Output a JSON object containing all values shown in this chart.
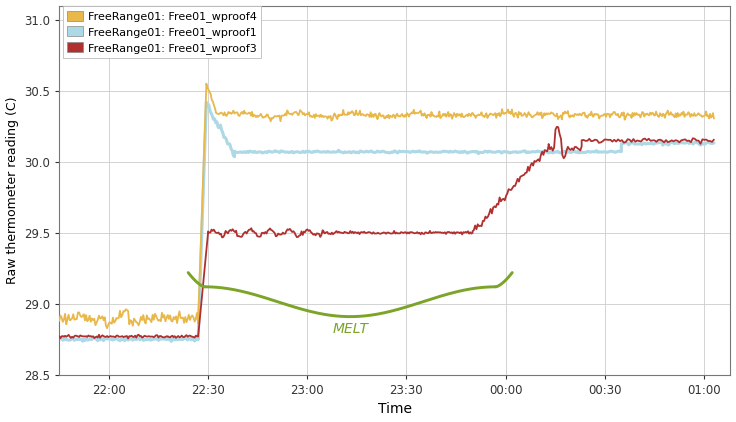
{
  "title": "",
  "ylabel": "Raw thermometer reading (C)",
  "xlabel": "Time",
  "ylim": [
    28.5,
    31.1
  ],
  "legend_labels": [
    "FreeRange01: Free01_wproof4",
    "FreeRange01: Free01_wproof1",
    "FreeRange01: Free01_wproof3"
  ],
  "colors": {
    "wproof4": "#E8B84B",
    "wproof1": "#ADD8E6",
    "wproof3": "#B03030"
  },
  "melt_color": "#7BA428",
  "background_color": "#FFFFFF",
  "grid_color": "#CCCCCC",
  "xtick_labels": [
    "22:00",
    "22:30",
    "23:00",
    "23:30",
    "00:00",
    "00:30",
    "01:00"
  ],
  "ytick_labels": [
    "28.5",
    "29.0",
    "29.5",
    "30.0",
    "30.5",
    "31.0"
  ],
  "xtick_pos": [
    15,
    45,
    75,
    105,
    135,
    165,
    195
  ],
  "ytick_pos": [
    28.5,
    29.0,
    29.5,
    30.0,
    30.5,
    31.0
  ],
  "xlim": [
    0,
    203
  ],
  "legend_patch_colors": [
    "#E8B84B",
    "#ADD8E6",
    "#B03030"
  ]
}
